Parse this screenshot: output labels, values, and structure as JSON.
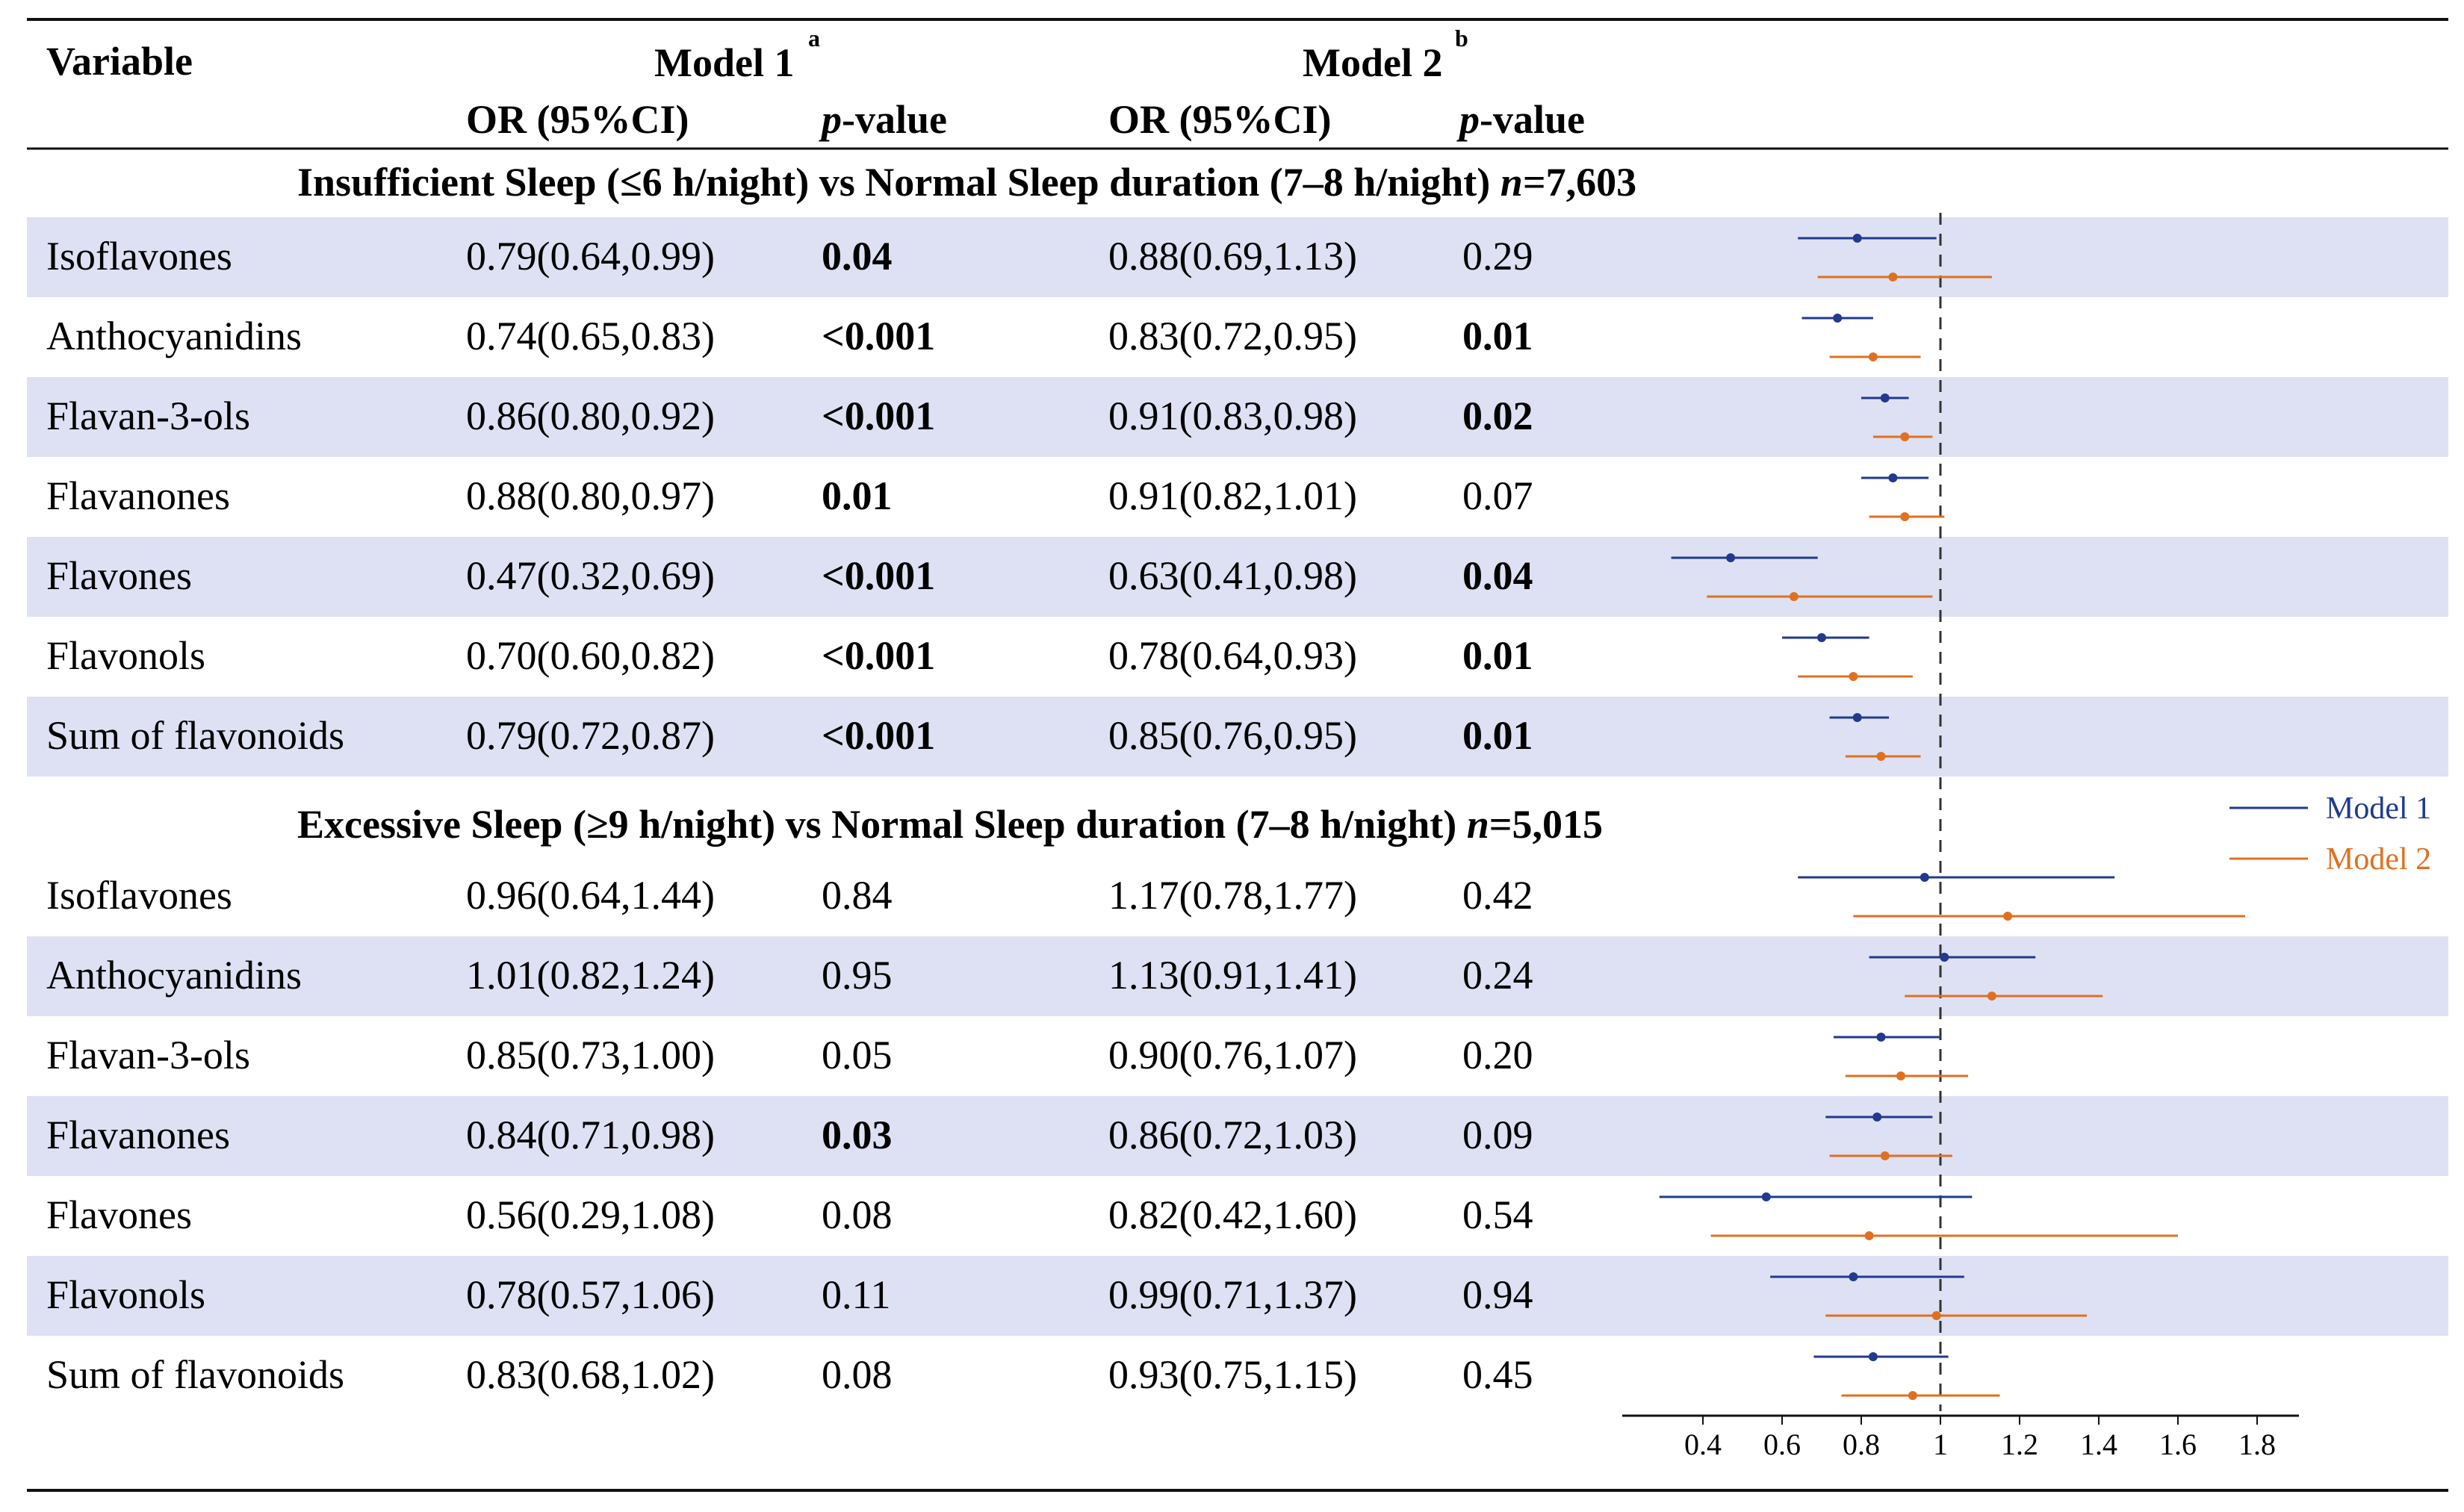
{
  "header": {
    "variable": "Variable",
    "model1": "Model 1",
    "model1_sup": "a",
    "model2": "Model 2",
    "model2_sup": "b",
    "or_ci": "OR (95%CI)",
    "p_italic": "p",
    "p_rest": "-value"
  },
  "sections": [
    {
      "title_main": "Insufficient Sleep (≤6 h/night) vs Normal Sleep duration (7–8 h/night) ",
      "title_n_italic": "n",
      "title_n_value": "=7,603",
      "rows": [
        {
          "variable": "Isoflavones",
          "m1_or": "0.79(0.64,0.99)",
          "m1_p": "0.04",
          "m1_bold": true,
          "m2_or": "0.88(0.69,1.13)",
          "m2_p": "0.29",
          "m2_bold": false
        },
        {
          "variable": "Anthocyanidins",
          "m1_or": "0.74(0.65,0.83)",
          "m1_p": "<0.001",
          "m1_bold": true,
          "m2_or": "0.83(0.72,0.95)",
          "m2_p": "0.01",
          "m2_bold": true
        },
        {
          "variable": "Flavan-3-ols",
          "m1_or": "0.86(0.80,0.92)",
          "m1_p": "<0.001",
          "m1_bold": true,
          "m2_or": "0.91(0.83,0.98)",
          "m2_p": "0.02",
          "m2_bold": true
        },
        {
          "variable": "Flavanones",
          "m1_or": "0.88(0.80,0.97)",
          "m1_p": "0.01",
          "m1_bold": true,
          "m2_or": "0.91(0.82,1.01)",
          "m2_p": "0.07",
          "m2_bold": false
        },
        {
          "variable": "Flavones",
          "m1_or": "0.47(0.32,0.69)",
          "m1_p": "<0.001",
          "m1_bold": true,
          "m2_or": "0.63(0.41,0.98)",
          "m2_p": "0.04",
          "m2_bold": true
        },
        {
          "variable": "Flavonols",
          "m1_or": "0.70(0.60,0.82)",
          "m1_p": "<0.001",
          "m1_bold": true,
          "m2_or": "0.78(0.64,0.93)",
          "m2_p": "0.01",
          "m2_bold": true
        },
        {
          "variable": "Sum of flavonoids",
          "m1_or": "0.79(0.72,0.87)",
          "m1_p": "<0.001",
          "m1_bold": true,
          "m2_or": "0.85(0.76,0.95)",
          "m2_p": "0.01",
          "m2_bold": true
        }
      ]
    },
    {
      "title_main": "Excessive Sleep (≥9 h/night) vs Normal Sleep duration (7–8 h/night) ",
      "title_n_italic": "n",
      "title_n_value": "=5,015",
      "rows": [
        {
          "variable": "Isoflavones",
          "m1_or": "0.96(0.64,1.44)",
          "m1_p": "0.84",
          "m1_bold": false,
          "m2_or": "1.17(0.78,1.77)",
          "m2_p": "0.42",
          "m2_bold": false
        },
        {
          "variable": "Anthocyanidins",
          "m1_or": "1.01(0.82,1.24)",
          "m1_p": "0.95",
          "m1_bold": false,
          "m2_or": "1.13(0.91,1.41)",
          "m2_p": "0.24",
          "m2_bold": false
        },
        {
          "variable": "Flavan-3-ols",
          "m1_or": "0.85(0.73,1.00)",
          "m1_p": "0.05",
          "m1_bold": false,
          "m2_or": "0.90(0.76,1.07)",
          "m2_p": "0.20",
          "m2_bold": false
        },
        {
          "variable": "Flavanones",
          "m1_or": "0.84(0.71,0.98)",
          "m1_p": "0.03",
          "m1_bold": true,
          "m2_or": "0.86(0.72,1.03)",
          "m2_p": "0.09",
          "m2_bold": false
        },
        {
          "variable": "Flavones",
          "m1_or": "0.56(0.29,1.08)",
          "m1_p": "0.08",
          "m1_bold": false,
          "m2_or": "0.82(0.42,1.60)",
          "m2_p": "0.54",
          "m2_bold": false
        },
        {
          "variable": "Flavonols",
          "m1_or": "0.78(0.57,1.06)",
          "m1_p": "0.11",
          "m1_bold": false,
          "m2_or": "0.99(0.71,1.37)",
          "m2_p": "0.94",
          "m2_bold": false
        },
        {
          "variable": "Sum of flavonoids",
          "m1_or": "0.83(0.68,1.02)",
          "m1_p": "0.08",
          "m1_bold": false,
          "m2_or": "0.93(0.75,1.15)",
          "m2_p": "0.45",
          "m2_bold": false
        }
      ]
    }
  ],
  "colors": {
    "model1": "#1f3a8f",
    "model2": "#e07020",
    "band": "#dde1f3"
  },
  "chart_data": {
    "type": "forest",
    "reference_line": 1,
    "xlim": [
      0.2,
      1.9
    ],
    "xticks": [
      "0.4",
      "0.6",
      "0.8",
      "1",
      "1.2",
      "1.4",
      "1.6",
      "1.8"
    ],
    "legend": {
      "position": "right",
      "entries": [
        "Model 1",
        "Model 2"
      ]
    },
    "series": [
      {
        "name": "Model 1",
        "points": [
          {
            "or": 0.79,
            "lo": 0.64,
            "hi": 0.99
          },
          {
            "or": 0.74,
            "lo": 0.65,
            "hi": 0.83
          },
          {
            "or": 0.86,
            "lo": 0.8,
            "hi": 0.92
          },
          {
            "or": 0.88,
            "lo": 0.8,
            "hi": 0.97
          },
          {
            "or": 0.47,
            "lo": 0.32,
            "hi": 0.69
          },
          {
            "or": 0.7,
            "lo": 0.6,
            "hi": 0.82
          },
          {
            "or": 0.79,
            "lo": 0.72,
            "hi": 0.87
          },
          {
            "or": 0.96,
            "lo": 0.64,
            "hi": 1.44
          },
          {
            "or": 1.01,
            "lo": 0.82,
            "hi": 1.24
          },
          {
            "or": 0.85,
            "lo": 0.73,
            "hi": 1.0
          },
          {
            "or": 0.84,
            "lo": 0.71,
            "hi": 0.98
          },
          {
            "or": 0.56,
            "lo": 0.29,
            "hi": 1.08
          },
          {
            "or": 0.78,
            "lo": 0.57,
            "hi": 1.06
          },
          {
            "or": 0.83,
            "lo": 0.68,
            "hi": 1.02
          }
        ]
      },
      {
        "name": "Model 2",
        "points": [
          {
            "or": 0.88,
            "lo": 0.69,
            "hi": 1.13
          },
          {
            "or": 0.83,
            "lo": 0.72,
            "hi": 0.95
          },
          {
            "or": 0.91,
            "lo": 0.83,
            "hi": 0.98
          },
          {
            "or": 0.91,
            "lo": 0.82,
            "hi": 1.01
          },
          {
            "or": 0.63,
            "lo": 0.41,
            "hi": 0.98
          },
          {
            "or": 0.78,
            "lo": 0.64,
            "hi": 0.93
          },
          {
            "or": 0.85,
            "lo": 0.76,
            "hi": 0.95
          },
          {
            "or": 1.17,
            "lo": 0.78,
            "hi": 1.77
          },
          {
            "or": 1.13,
            "lo": 0.91,
            "hi": 1.41
          },
          {
            "or": 0.9,
            "lo": 0.76,
            "hi": 1.07
          },
          {
            "or": 0.86,
            "lo": 0.72,
            "hi": 1.03
          },
          {
            "or": 0.82,
            "lo": 0.42,
            "hi": 1.6
          },
          {
            "or": 0.99,
            "lo": 0.71,
            "hi": 1.37
          },
          {
            "or": 0.93,
            "lo": 0.75,
            "hi": 1.15
          }
        ]
      }
    ]
  }
}
